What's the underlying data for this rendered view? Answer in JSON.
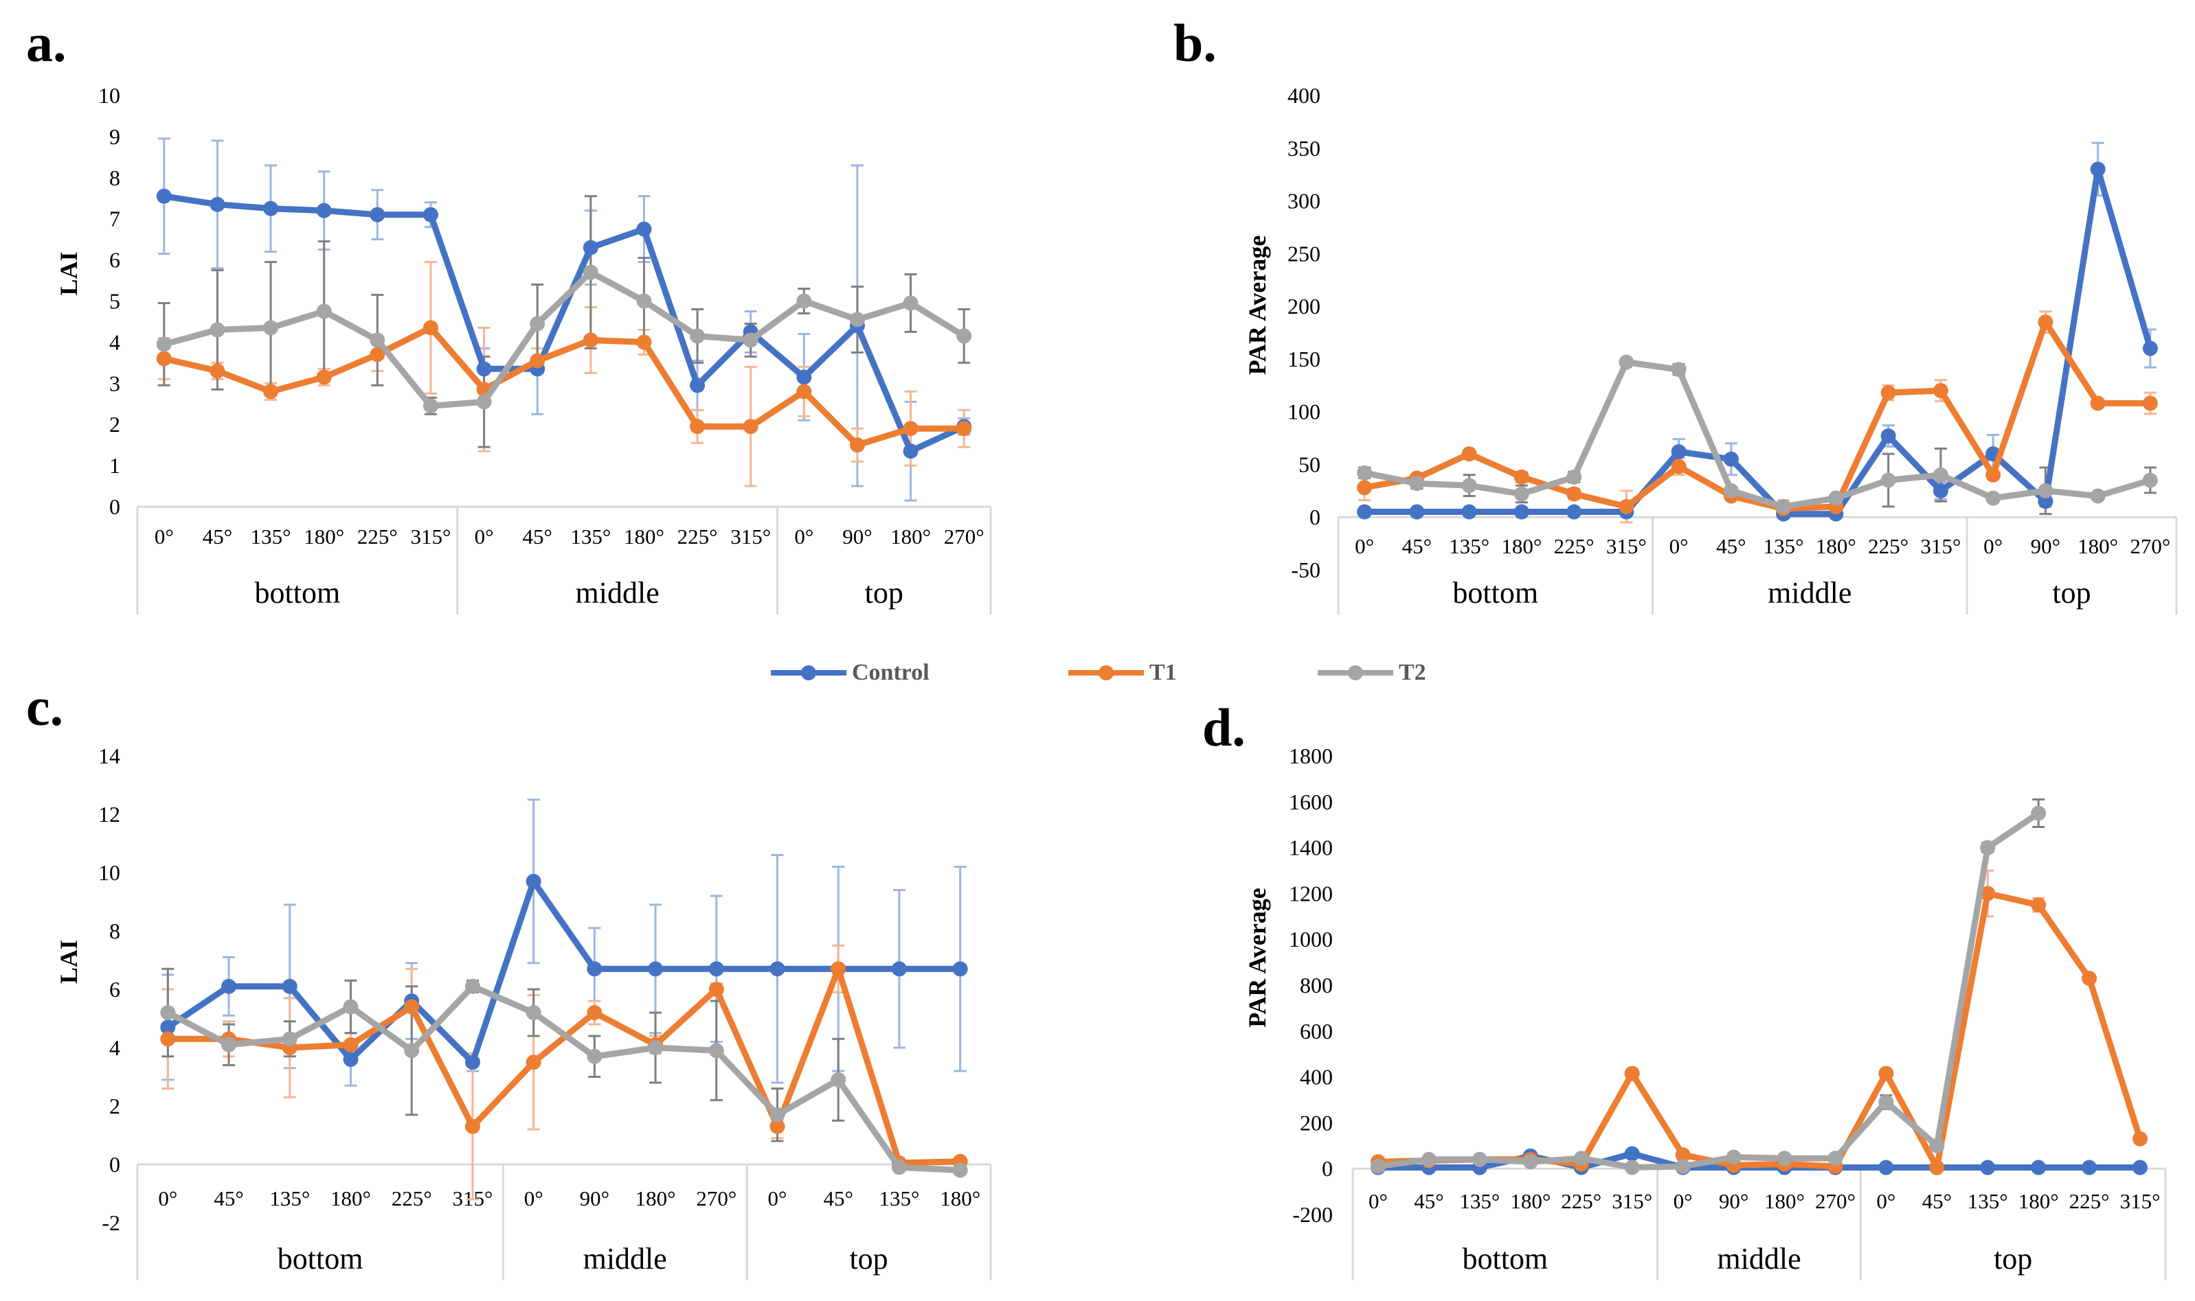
{
  "panel_labels": {
    "a": "a.",
    "b": "b.",
    "c": "c.",
    "d": "d."
  },
  "colors": {
    "Control": "#4472C4",
    "T1": "#ED7D31",
    "T2": "#A5A5A5"
  },
  "legend": [
    {
      "name": "Control",
      "color": "#4472C4"
    },
    {
      "name": "T1",
      "color": "#ED7D31"
    },
    {
      "name": "T2",
      "color": "#A5A5A5"
    }
  ],
  "chart_data": [
    {
      "id": "a",
      "type": "line",
      "title": "",
      "xlabel": "",
      "ylabel": "LAI",
      "ylim": [
        0,
        10
      ],
      "yticks": [
        0,
        1,
        2,
        3,
        4,
        5,
        6,
        7,
        8,
        9,
        10
      ],
      "grid": false,
      "groups": [
        {
          "name": "bottom",
          "categories": [
            "0°",
            "45°",
            "135°",
            "180°",
            "225°",
            "315°"
          ]
        },
        {
          "name": "middle",
          "categories": [
            "0°",
            "45°",
            "135°",
            "180°",
            "225°",
            "315°"
          ]
        },
        {
          "name": "top",
          "categories": [
            "0°",
            "90°",
            "180°",
            "270°"
          ]
        }
      ],
      "series": [
        {
          "name": "Control",
          "values": [
            7.55,
            7.35,
            7.25,
            7.2,
            7.1,
            7.1,
            3.35,
            3.35,
            6.3,
            6.75,
            2.95,
            4.25,
            3.15,
            4.4,
            1.35,
            1.95
          ],
          "error": [
            1.4,
            1.55,
            1.05,
            0.95,
            0.6,
            0.3,
            0.5,
            1.1,
            0.9,
            0.8,
            0.6,
            0.5,
            1.05,
            3.9,
            1.2,
            0.2
          ]
        },
        {
          "name": "T1",
          "values": [
            3.6,
            3.3,
            2.8,
            3.15,
            3.7,
            4.35,
            2.85,
            3.55,
            4.05,
            4.0,
            1.95,
            1.95,
            2.8,
            1.5,
            1.9,
            1.9
          ],
          "error": [
            0.5,
            0.2,
            0.2,
            0.2,
            0.4,
            1.6,
            1.5,
            0.3,
            0.8,
            0.3,
            0.4,
            1.45,
            0.6,
            0.4,
            0.9,
            0.45
          ]
        },
        {
          "name": "T2",
          "values": [
            3.95,
            4.3,
            4.35,
            4.75,
            4.05,
            2.45,
            2.55,
            4.45,
            5.7,
            5.0,
            4.15,
            4.05,
            5.0,
            4.55,
            4.95,
            4.15
          ],
          "error": [
            1.0,
            1.45,
            1.6,
            1.7,
            1.1,
            0.2,
            1.1,
            0.95,
            1.85,
            1.05,
            0.65,
            0.4,
            0.3,
            0.8,
            0.7,
            0.65
          ]
        }
      ]
    },
    {
      "id": "b",
      "type": "line",
      "title": "",
      "xlabel": "",
      "ylabel": "PAR Average",
      "ylim": [
        -50,
        400
      ],
      "yticks": [
        -50,
        0,
        50,
        100,
        150,
        200,
        250,
        300,
        350,
        400
      ],
      "grid": false,
      "groups": [
        {
          "name": "bottom",
          "categories": [
            "0°",
            "45°",
            "135°",
            "180°",
            "225°",
            "315°"
          ]
        },
        {
          "name": "middle",
          "categories": [
            "0°",
            "45°",
            "135°",
            "180°",
            "225°",
            "315°"
          ]
        },
        {
          "name": "top",
          "categories": [
            "0°",
            "90°",
            "180°",
            "270°"
          ]
        }
      ],
      "series": [
        {
          "name": "Control",
          "values": [
            5,
            5,
            5,
            5,
            5,
            5,
            62,
            55,
            3,
            3,
            77,
            25,
            60,
            15,
            330,
            160
          ],
          "error": [
            0,
            0,
            0,
            0,
            0,
            0,
            12,
            15,
            2,
            2,
            10,
            8,
            18,
            5,
            25,
            18
          ]
        },
        {
          "name": "T1",
          "values": [
            28,
            37,
            60,
            38,
            22,
            10,
            48,
            20,
            8,
            10,
            118,
            120,
            40,
            185,
            108,
            108
          ],
          "error": [
            12,
            3,
            3,
            5,
            5,
            15,
            8,
            3,
            8,
            3,
            7,
            10,
            3,
            10,
            3,
            10
          ]
        },
        {
          "name": "T2",
          "values": [
            42,
            32,
            30,
            22,
            38,
            147,
            140,
            25,
            10,
            18,
            35,
            40,
            18,
            25,
            20,
            35
          ],
          "error": [
            5,
            5,
            10,
            8,
            5,
            3,
            5,
            3,
            3,
            3,
            25,
            25,
            3,
            22,
            3,
            12
          ]
        }
      ]
    },
    {
      "id": "c",
      "type": "line",
      "title": "",
      "xlabel": "",
      "ylabel": "LAI",
      "ylim": [
        -2,
        14
      ],
      "yticks": [
        -2,
        0,
        2,
        4,
        6,
        8,
        10,
        12,
        14
      ],
      "grid": false,
      "groups": [
        {
          "name": "bottom",
          "categories": [
            "0°",
            "45°",
            "135°",
            "180°",
            "225°",
            "315°"
          ]
        },
        {
          "name": "middle",
          "categories": [
            "0°",
            "90°",
            "180°",
            "270°"
          ]
        },
        {
          "name": "top",
          "categories": [
            "0°",
            "45°",
            "135°",
            "180°"
          ]
        }
      ],
      "series": [
        {
          "name": "Control",
          "values": [
            4.7,
            6.1,
            6.1,
            3.6,
            5.6,
            3.5,
            9.7,
            6.7,
            6.7,
            6.7,
            6.7,
            6.7,
            6.7,
            6.7
          ],
          "error": [
            1.8,
            1.0,
            2.8,
            0.9,
            1.3,
            0.3,
            2.8,
            1.4,
            2.2,
            2.5,
            3.9,
            3.5,
            2.7,
            3.5
          ]
        },
        {
          "name": "T1",
          "values": [
            4.3,
            4.3,
            4.0,
            4.1,
            5.4,
            1.3,
            3.5,
            5.2,
            4.1,
            6.0,
            1.3,
            6.7,
            0.05,
            0.1
          ],
          "error": [
            1.7,
            0.6,
            1.7,
            0.4,
            1.3,
            2.5,
            2.3,
            0.4,
            0.3,
            0.2,
            0.4,
            0.8,
            0.05,
            0.05
          ]
        },
        {
          "name": "T2",
          "values": [
            5.2,
            4.1,
            4.3,
            5.4,
            3.9,
            6.1,
            5.2,
            3.7,
            4.0,
            3.9,
            1.7,
            2.9,
            -0.1,
            -0.2
          ],
          "error": [
            1.5,
            0.7,
            0.6,
            0.9,
            2.2,
            0.2,
            0.8,
            0.7,
            1.2,
            1.7,
            0.9,
            1.4,
            0.1,
            0.1
          ]
        }
      ]
    },
    {
      "id": "d",
      "type": "line",
      "title": "",
      "xlabel": "",
      "ylabel": "PAR Average",
      "ylim": [
        -200,
        1800
      ],
      "yticks": [
        -200,
        0,
        200,
        400,
        600,
        800,
        1000,
        1200,
        1400,
        1600,
        1800
      ],
      "grid": false,
      "groups": [
        {
          "name": "bottom",
          "categories": [
            "0°",
            "45°",
            "135°",
            "180°",
            "225°",
            "315°"
          ]
        },
        {
          "name": "middle",
          "categories": [
            "0°",
            "90°",
            "180°",
            "270°"
          ]
        },
        {
          "name": "top",
          "categories": [
            "0°",
            "45°",
            "135°",
            "180°",
            "225°",
            "315°"
          ]
        }
      ],
      "series": [
        {
          "name": "Control",
          "values": [
            5,
            5,
            5,
            55,
            5,
            65,
            5,
            5,
            5,
            5,
            5,
            5,
            5,
            5,
            5,
            5
          ],
          "error": [
            0,
            0,
            0,
            5,
            0,
            5,
            0,
            0,
            0,
            0,
            0,
            0,
            0,
            0,
            0,
            0
          ]
        },
        {
          "name": "T1",
          "values": [
            30,
            35,
            40,
            40,
            20,
            415,
            60,
            15,
            20,
            10,
            415,
            5,
            1200,
            1150,
            830,
            130
          ],
          "error": [
            5,
            5,
            5,
            5,
            5,
            10,
            5,
            5,
            5,
            5,
            10,
            5,
            100,
            30,
            10,
            10
          ]
        },
        {
          "name": "T2",
          "values": [
            10,
            40,
            40,
            30,
            45,
            5,
            10,
            50,
            45,
            45,
            290,
            100,
            1400,
            1550,
            null,
            null
          ],
          "error": [
            5,
            5,
            5,
            5,
            5,
            5,
            5,
            5,
            5,
            5,
            30,
            10,
            20,
            60,
            null,
            null
          ]
        }
      ]
    }
  ]
}
